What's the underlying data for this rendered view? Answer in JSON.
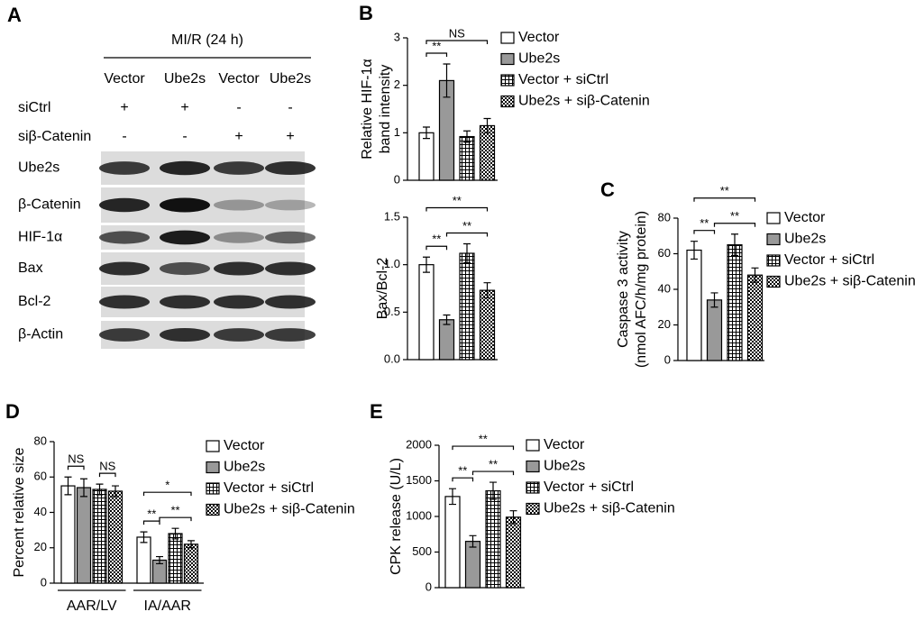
{
  "blot": {
    "panel": "A",
    "condition": "MI/R (24 h)",
    "columns": [
      "Vector",
      "Ube2s",
      "Vector",
      "Ube2s"
    ],
    "treatments": [
      {
        "label": "siCtrl",
        "marks": [
          "+",
          "+",
          "-",
          "-"
        ]
      },
      {
        "label": "siβ-Catenin",
        "marks": [
          "-",
          "-",
          "+",
          "+"
        ]
      }
    ],
    "proteins": [
      "Ube2s",
      "β-Catenin",
      "HIF-1α",
      "Bax",
      "Bcl-2",
      "β-Actin"
    ]
  },
  "chart_data": [
    {
      "type": "bar",
      "panel": "B",
      "ylabel": [
        "Relative HIF-1α",
        "band intensity"
      ],
      "ylim": [
        0,
        3
      ],
      "yticks": [
        0,
        1,
        2,
        3
      ],
      "legend": "right",
      "series": [
        {
          "name": "Vector",
          "color": "#ffffff",
          "pattern": "solid",
          "values": [
            1.0
          ],
          "errors": [
            0.12
          ]
        },
        {
          "name": "Ube2s",
          "color": "#999999",
          "pattern": "solid",
          "values": [
            2.1
          ],
          "errors": [
            0.35
          ]
        },
        {
          "name": "Vector + siCtrl",
          "color": "#000000",
          "pattern": "checker-light",
          "values": [
            0.92
          ],
          "errors": [
            0.12
          ]
        },
        {
          "name": "Ube2s + siβ-Catenin",
          "color": "#000000",
          "pattern": "checker-dark",
          "values": [
            1.15
          ],
          "errors": [
            0.15
          ]
        }
      ],
      "annotations": [
        {
          "label": "**",
          "category": 0,
          "between": [
            0,
            1
          ]
        },
        {
          "label": "NS",
          "category": 0,
          "between": [
            0,
            3
          ]
        }
      ]
    },
    {
      "type": "bar",
      "ylabel": [
        "Bax/Bcl-2"
      ],
      "ylim": [
        0,
        1.5
      ],
      "yticks": [
        {
          "value": 0,
          "label": "0.0"
        },
        {
          "value": 0.5,
          "label": "0.5"
        },
        {
          "value": 1,
          "label": "1.0"
        },
        {
          "value": 1.5,
          "label": "1.5"
        }
      ],
      "series": [
        {
          "color": "#ffffff",
          "pattern": "solid",
          "values": [
            1.0
          ],
          "errors": [
            0.08
          ]
        },
        {
          "color": "#999999",
          "pattern": "solid",
          "values": [
            0.42
          ],
          "errors": [
            0.05
          ]
        },
        {
          "color": "#000000",
          "pattern": "checker-light",
          "values": [
            1.12
          ],
          "errors": [
            0.1
          ]
        },
        {
          "color": "#000000",
          "pattern": "checker-dark",
          "values": [
            0.73
          ],
          "errors": [
            0.08
          ]
        }
      ],
      "annotations": [
        {
          "label": "**",
          "category": 0,
          "between": [
            0,
            1
          ]
        },
        {
          "label": "**",
          "category": 0,
          "between": [
            1,
            3
          ]
        },
        {
          "label": "**",
          "category": 0,
          "between": [
            0,
            3
          ]
        }
      ]
    },
    {
      "type": "bar",
      "panel": "C",
      "ylabel": [
        "Caspase 3 activity",
        "(nmol AFC/h/mg protein)"
      ],
      "ylim": [
        0,
        80
      ],
      "yticks": [
        0,
        20,
        40,
        60,
        80
      ],
      "legend": "right",
      "series": [
        {
          "name": "Vector",
          "color": "#ffffff",
          "pattern": "solid",
          "values": [
            62
          ],
          "errors": [
            5
          ]
        },
        {
          "name": "Ube2s",
          "color": "#999999",
          "pattern": "solid",
          "values": [
            34
          ],
          "errors": [
            4
          ]
        },
        {
          "name": "Vector + siCtrl",
          "color": "#000000",
          "pattern": "checker-light",
          "values": [
            65
          ],
          "errors": [
            6
          ]
        },
        {
          "name": "Ube2s + siβ-Catenin",
          "color": "#000000",
          "pattern": "checker-dark",
          "values": [
            48
          ],
          "errors": [
            4
          ]
        }
      ],
      "annotations": [
        {
          "label": "**",
          "category": 0,
          "between": [
            0,
            1
          ]
        },
        {
          "label": "**",
          "category": 0,
          "between": [
            1,
            3
          ]
        },
        {
          "label": "**",
          "category": 0,
          "between": [
            0,
            3
          ]
        }
      ]
    },
    {
      "type": "bar",
      "panel": "D",
      "ylabel": [
        "Percent relative size"
      ],
      "categories": [
        "AAR/LV",
        "IA/AAR"
      ],
      "ylim": [
        0,
        80
      ],
      "yticks": [
        0,
        20,
        40,
        60,
        80
      ],
      "legend": "right",
      "series": [
        {
          "name": "Vector",
          "color": "#ffffff",
          "pattern": "solid",
          "values": [
            55,
            26
          ],
          "errors": [
            5,
            3
          ]
        },
        {
          "name": "Ube2s",
          "color": "#999999",
          "pattern": "solid",
          "values": [
            54,
            13
          ],
          "errors": [
            5,
            2
          ]
        },
        {
          "name": "Vector + siCtrl",
          "color": "#000000",
          "pattern": "checker-light",
          "values": [
            53,
            28
          ],
          "errors": [
            3,
            3
          ]
        },
        {
          "name": "Ube2s + siβ-Catenin",
          "color": "#000000",
          "pattern": "checker-dark",
          "values": [
            52,
            22
          ],
          "errors": [
            3,
            2
          ]
        }
      ],
      "annotations": [
        {
          "label": "NS",
          "category": 0,
          "between": [
            0,
            1
          ]
        },
        {
          "label": "NS",
          "category": 0,
          "between": [
            2,
            3
          ]
        },
        {
          "label": "**",
          "category": 1,
          "between": [
            0,
            1
          ]
        },
        {
          "label": "**",
          "category": 1,
          "between": [
            1,
            3
          ]
        },
        {
          "label": "*",
          "category": 1,
          "between": [
            0,
            3
          ]
        }
      ]
    },
    {
      "type": "bar",
      "panel": "E",
      "ylabel": [
        "CPK release (U/L)"
      ],
      "ylim": [
        0,
        2000
      ],
      "yticks": [
        0,
        500,
        1000,
        1500,
        2000
      ],
      "legend": "right",
      "series": [
        {
          "name": "Vector",
          "color": "#ffffff",
          "pattern": "solid",
          "values": [
            1280
          ],
          "errors": [
            110
          ]
        },
        {
          "name": "Ube2s",
          "color": "#999999",
          "pattern": "solid",
          "values": [
            650
          ],
          "errors": [
            80
          ]
        },
        {
          "name": "Vector + siCtrl",
          "color": "#000000",
          "pattern": "checker-light",
          "values": [
            1360
          ],
          "errors": [
            120
          ]
        },
        {
          "name": "Ube2s + siβ-Catenin",
          "color": "#000000",
          "pattern": "checker-dark",
          "values": [
            990
          ],
          "errors": [
            90
          ]
        }
      ],
      "annotations": [
        {
          "label": "**",
          "category": 0,
          "between": [
            0,
            1
          ]
        },
        {
          "label": "**",
          "category": 0,
          "between": [
            1,
            3
          ]
        },
        {
          "label": "**",
          "category": 0,
          "between": [
            0,
            3
          ]
        }
      ]
    }
  ]
}
